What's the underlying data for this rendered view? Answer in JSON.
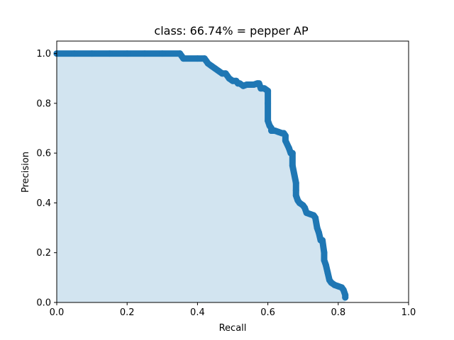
{
  "chart_data": {
    "type": "area",
    "title": "class: 66.74% = pepper AP",
    "xlabel": "Recall",
    "ylabel": "Precision",
    "xlim": [
      0.0,
      1.0
    ],
    "ylim": [
      0.0,
      1.05
    ],
    "xticks": [
      0.0,
      0.2,
      0.4,
      0.6,
      0.8,
      1.0
    ],
    "yticks": [
      0.0,
      0.2,
      0.4,
      0.6,
      0.8,
      1.0
    ],
    "xtick_labels": [
      "0.0",
      "0.2",
      "0.4",
      "0.6",
      "0.8",
      "1.0"
    ],
    "ytick_labels": [
      "0.0",
      "0.2",
      "0.4",
      "0.6",
      "0.8",
      "1.0"
    ],
    "grid": false,
    "colors": {
      "points": "#1f77b4",
      "fill": "#1f77b4",
      "fill_alpha": 0.2
    },
    "series": [
      {
        "x": [
          0.0,
          0.05,
          0.1,
          0.15,
          0.2,
          0.25,
          0.3,
          0.35,
          0.355,
          0.36,
          0.4,
          0.42,
          0.425,
          0.43,
          0.44,
          0.45,
          0.46,
          0.47,
          0.48,
          0.485,
          0.49,
          0.5,
          0.51,
          0.515,
          0.52,
          0.53,
          0.54,
          0.55,
          0.56,
          0.57,
          0.575,
          0.58,
          0.59,
          0.595,
          0.6,
          0.6,
          0.6,
          0.605,
          0.61,
          0.61,
          0.62,
          0.63,
          0.64,
          0.645,
          0.65,
          0.65,
          0.66,
          0.665,
          0.67,
          0.67,
          0.68,
          0.68,
          0.68,
          0.685,
          0.69,
          0.7,
          0.705,
          0.71,
          0.72,
          0.73,
          0.735,
          0.74,
          0.745,
          0.75,
          0.755,
          0.76,
          0.76,
          0.765,
          0.77,
          0.775,
          0.78,
          0.79,
          0.8,
          0.81,
          0.815,
          0.82,
          0.82
        ],
        "y": [
          1.0,
          1.0,
          1.0,
          1.0,
          1.0,
          1.0,
          1.0,
          1.0,
          0.99,
          0.98,
          0.98,
          0.98,
          0.97,
          0.96,
          0.95,
          0.94,
          0.93,
          0.92,
          0.92,
          0.91,
          0.9,
          0.89,
          0.89,
          0.88,
          0.88,
          0.87,
          0.875,
          0.875,
          0.875,
          0.88,
          0.88,
          0.86,
          0.86,
          0.855,
          0.85,
          0.8,
          0.73,
          0.71,
          0.7,
          0.69,
          0.69,
          0.685,
          0.68,
          0.68,
          0.67,
          0.65,
          0.62,
          0.6,
          0.6,
          0.55,
          0.48,
          0.45,
          0.43,
          0.41,
          0.4,
          0.39,
          0.38,
          0.36,
          0.355,
          0.35,
          0.34,
          0.3,
          0.28,
          0.25,
          0.25,
          0.2,
          0.17,
          0.15,
          0.12,
          0.09,
          0.08,
          0.07,
          0.065,
          0.06,
          0.05,
          0.03,
          0.02
        ]
      }
    ]
  }
}
